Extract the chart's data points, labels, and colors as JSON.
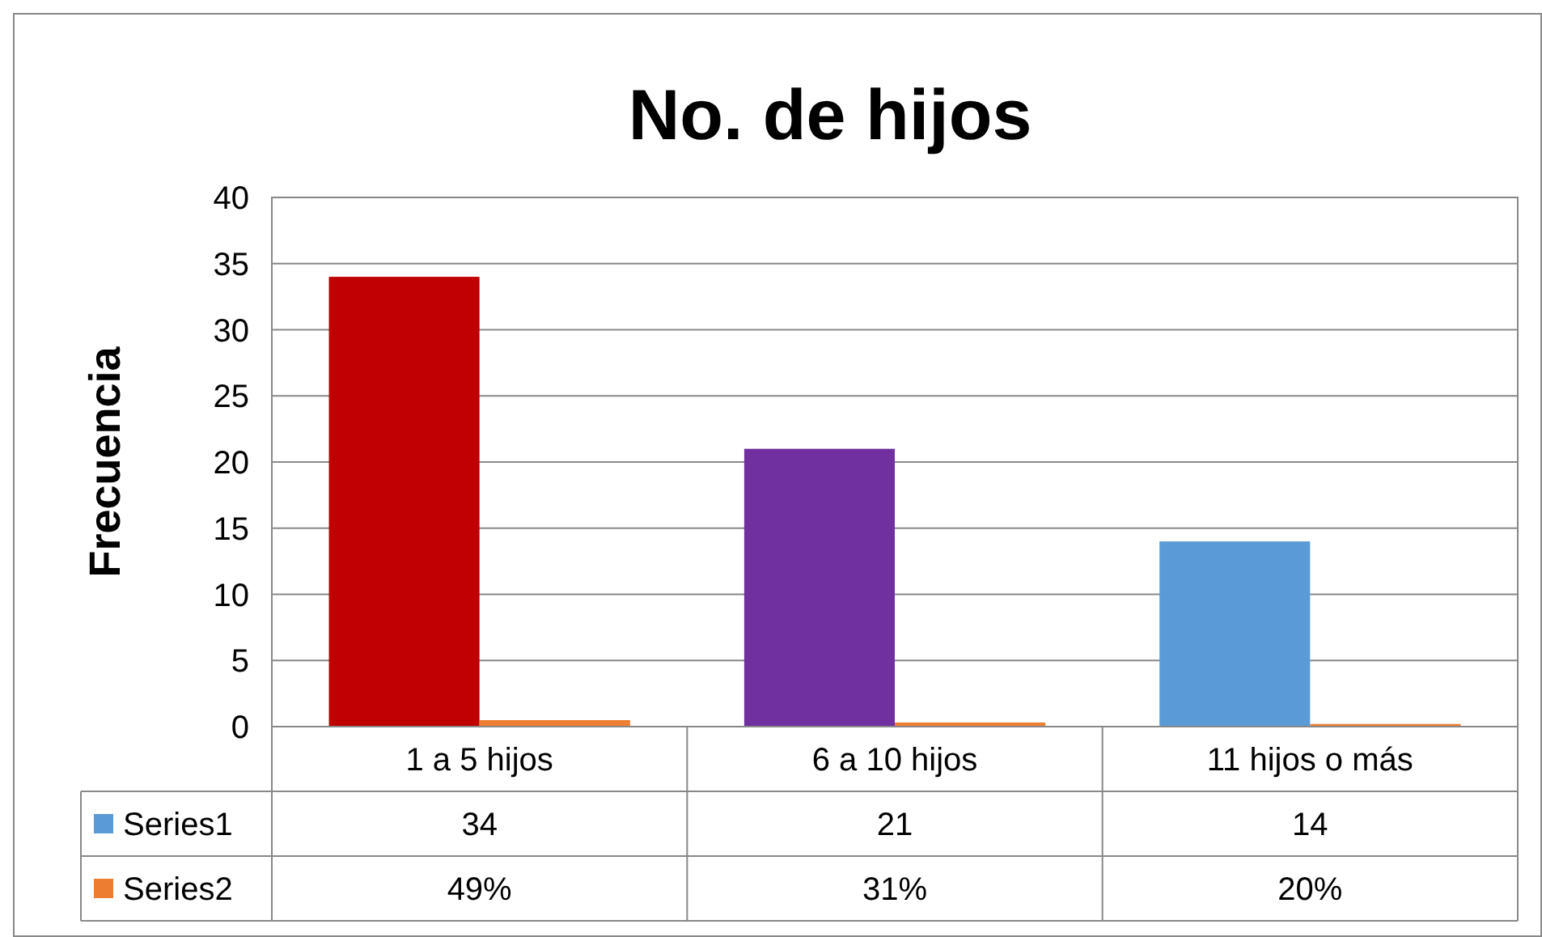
{
  "chart_data": {
    "type": "bar",
    "title": "No. de hijos",
    "ylabel": "Frecuencia",
    "categories": [
      "1 a 5 hijos",
      "6 a 10 hijos",
      "11 hijos o más"
    ],
    "series": [
      {
        "name": "Series1",
        "color": "#5b9bd5",
        "colors": [
          "#c00000",
          "#7030a0",
          "#5b9bd5"
        ],
        "values": [
          34,
          21,
          14
        ],
        "value_labels": [
          "34",
          "21",
          "14"
        ]
      },
      {
        "name": "Series2",
        "color": "#ed7d31",
        "values": [
          0.49,
          0.31,
          0.2
        ],
        "value_labels": [
          "49%",
          "31%",
          "20%"
        ]
      }
    ],
    "ylim": [
      0,
      40
    ],
    "yticks": [
      0,
      5,
      10,
      15,
      20,
      25,
      30,
      35,
      40
    ],
    "grid": "y",
    "legend": "bottom"
  }
}
